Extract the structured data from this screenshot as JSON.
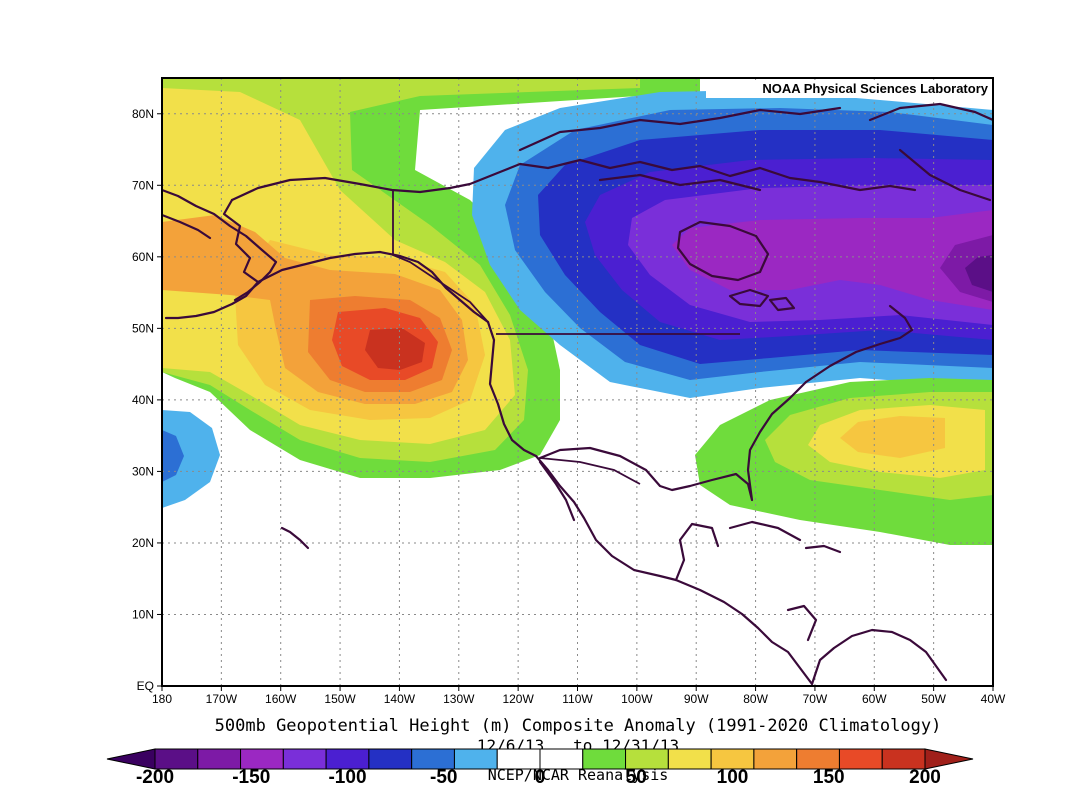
{
  "figure": {
    "credit": "NOAA Physical Sciences Laboratory",
    "title": "500mb Geopotential Height (m) Composite Anomaly (1991-2020 Climatology)",
    "dates": "12/6/13   to 12/31/13",
    "source": "NCEP/NCAR Reanalysis"
  },
  "map_extent": {
    "lon_min": -180,
    "lon_max": -40,
    "lat_min": 0,
    "lat_max": 85
  },
  "latitude_labels": [
    "80N",
    "70N",
    "60N",
    "50N",
    "40N",
    "30N",
    "20N",
    "10N",
    "EQ"
  ],
  "longitude_labels": [
    "180",
    "170W",
    "160W",
    "150W",
    "140W",
    "130W",
    "120W",
    "110W",
    "100W",
    "90W",
    "80W",
    "70W",
    "60W",
    "50W",
    "40W"
  ],
  "colorbar": {
    "labels": [
      "-200",
      "-150",
      "-100",
      "-50",
      "0",
      "50",
      "100",
      "150",
      "200"
    ],
    "range": [
      -200,
      200
    ],
    "step": 25,
    "colors": [
      "#5b0f87",
      "#7d1aa6",
      "#9b28c2",
      "#7a2fd9",
      "#4b1fd1",
      "#2430c4",
      "#2c6fd4",
      "#4fb2ec",
      "#ffffff",
      "#ffffff",
      "#6fdc3c",
      "#b6e03c",
      "#f2e04a",
      "#f6c640",
      "#f3a23a",
      "#ee7d30",
      "#e84a27",
      "#c9321f"
    ]
  },
  "anomaly_features": [
    {
      "name": "ridge over NE Pacific / Gulf of Alaska",
      "center_lon": -140,
      "center_lat": 47,
      "peak": 200
    },
    {
      "name": "trough over Canada",
      "center_lon": -95,
      "center_lat": 58,
      "peak": -150
    },
    {
      "name": "trough over Labrador Sea / Greenland",
      "center_lon": -45,
      "center_lat": 57,
      "peak": -175
    },
    {
      "name": "ridge over western Atlantic",
      "center_lon": -58,
      "center_lat": 34,
      "peak": 125
    },
    {
      "name": "weak trough near Hawaii",
      "center_lon": -179,
      "center_lat": 32,
      "peak": -75
    }
  ]
}
